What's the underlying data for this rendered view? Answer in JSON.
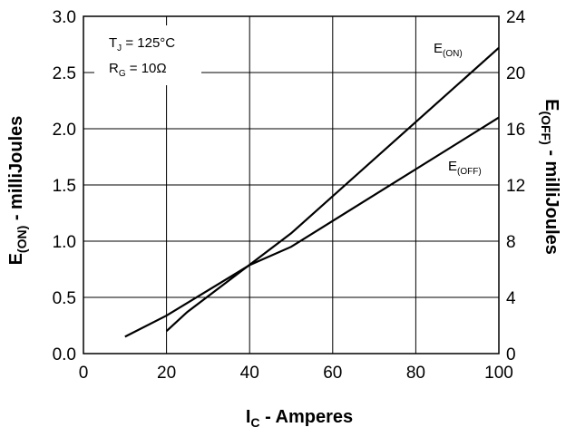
{
  "chart_data": {
    "type": "line",
    "xlabel": {
      "main": "I",
      "sub": "C",
      "rest": " - Amperes"
    },
    "ylabel_left": {
      "main": "E",
      "sub": "(ON)",
      "rest": " - milliJoules"
    },
    "ylabel_right": {
      "main": "E",
      "sub": "(OFF)",
      "rest": " - milliJoules"
    },
    "xlim": [
      0,
      100
    ],
    "ylim_left": [
      0,
      3.0
    ],
    "ylim_right": [
      0,
      24
    ],
    "x_ticks": [
      "0",
      "20",
      "40",
      "60",
      "80",
      "100"
    ],
    "y_left_ticks": [
      "0.0",
      "0.5",
      "1.0",
      "1.5",
      "2.0",
      "2.5",
      "3.0"
    ],
    "y_right_ticks": [
      "0",
      "4",
      "8",
      "12",
      "16",
      "20",
      "24"
    ],
    "grid": true,
    "annotations": [
      {
        "main": "T",
        "sub": "J",
        "rest": " = 125°C"
      },
      {
        "main": "R",
        "sub": "G",
        "rest": " = 10Ω"
      }
    ],
    "series": [
      {
        "name": {
          "main": "E",
          "sub": "(ON)"
        },
        "axis": "left",
        "x": [
          20,
          25,
          50,
          100
        ],
        "y": [
          0.2,
          0.37,
          1.07,
          2.72
        ]
      },
      {
        "name": {
          "main": "E",
          "sub": "(OFF)"
        },
        "axis": "right",
        "x": [
          10,
          20,
          40,
          50,
          100
        ],
        "y": [
          1.2,
          2.7,
          6.3,
          7.6,
          16.8
        ]
      }
    ]
  }
}
